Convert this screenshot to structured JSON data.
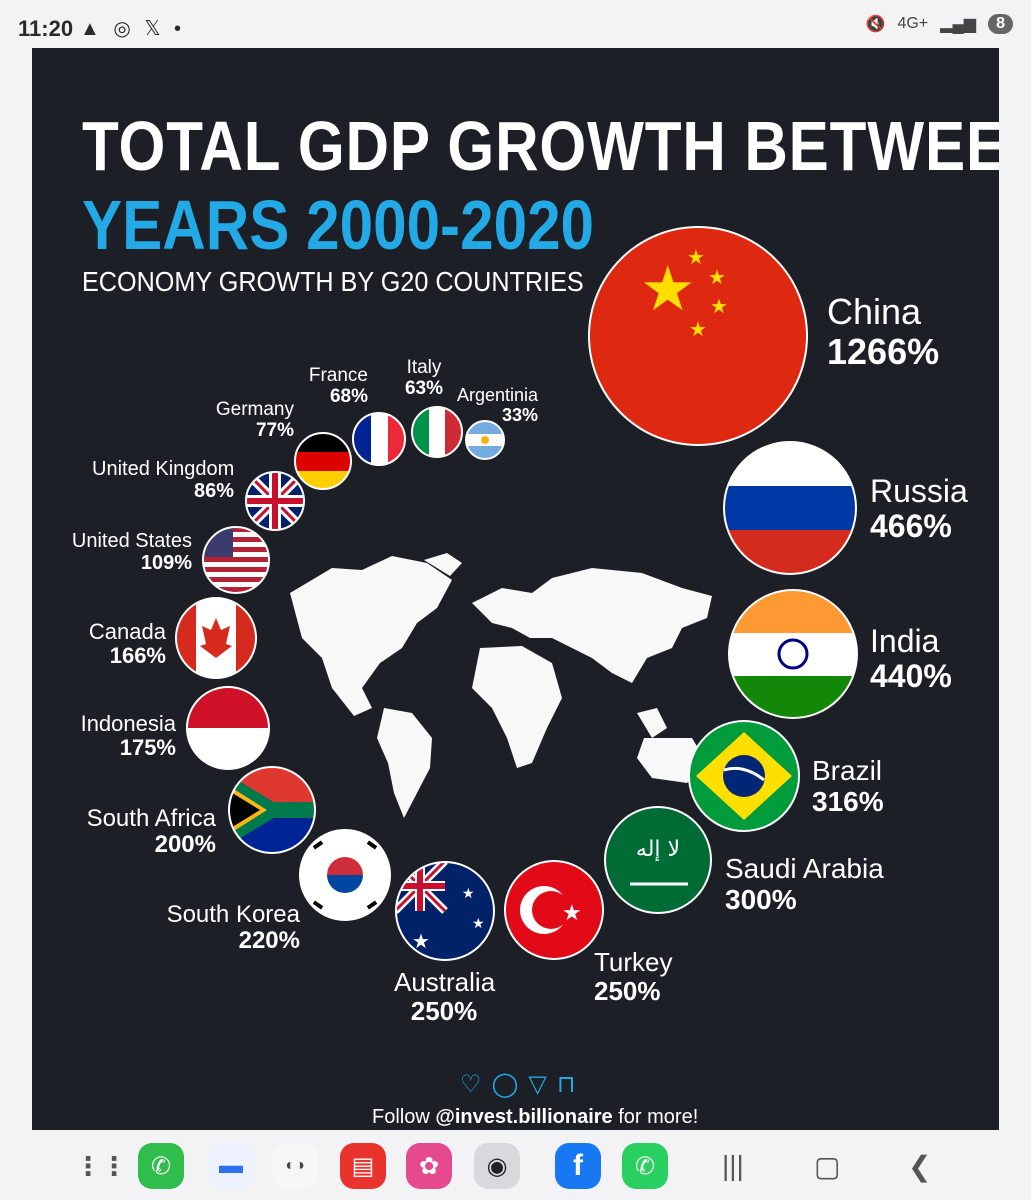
{
  "status_bar": {
    "time": "11:20",
    "left_icons": "▲ ◎ 𝕏 •",
    "signal": "4G+",
    "battery": "8"
  },
  "poster": {
    "title_line1": "TOTAL GDP GROWTH BETWEEN",
    "title_line2": "YEARS 2000-2020",
    "subtitle": "ECONOMY GROWTH BY G20 COUNTRIES",
    "countries": [
      {
        "name": "China",
        "pct": "1266%"
      },
      {
        "name": "Russia",
        "pct": "466%"
      },
      {
        "name": "India",
        "pct": "440%"
      },
      {
        "name": "Brazil",
        "pct": "316%"
      },
      {
        "name": "Saudi Arabia",
        "pct": "300%"
      },
      {
        "name": "Turkey",
        "pct": "250%"
      },
      {
        "name": "Australia",
        "pct": "250%"
      },
      {
        "name": "South Korea",
        "pct": "220%"
      },
      {
        "name": "South Africa",
        "pct": "200%"
      },
      {
        "name": "Indonesia",
        "pct": "175%"
      },
      {
        "name": "Canada",
        "pct": "166%"
      },
      {
        "name": "United States",
        "pct": "109%"
      },
      {
        "name": "United Kingdom",
        "pct": "86%"
      },
      {
        "name": "Germany",
        "pct": "77%"
      },
      {
        "name": "France",
        "pct": "68%"
      },
      {
        "name": "Italy",
        "pct": "63%"
      },
      {
        "name": "Argentinia",
        "pct": "33%"
      }
    ],
    "footer_prefix": "Follow ",
    "footer_handle": "@invest.billionaire",
    "footer_suffix": " for more!"
  },
  "bottom_nav": {
    "apps": [
      "app-drawer",
      "phone",
      "messages",
      "galaxy-store",
      "notes",
      "gallery",
      "camera",
      "facebook",
      "whatsapp"
    ]
  }
}
